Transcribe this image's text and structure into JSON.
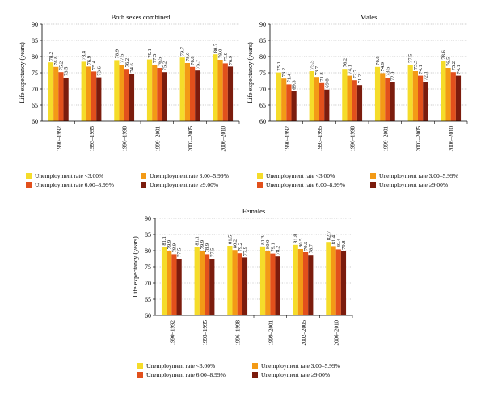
{
  "colors": {
    "lt3": "#f5dc2a",
    "r3_6": "#f39a16",
    "r6_9": "#e2501c",
    "ge9": "#7b1c0d",
    "grid": "#9a9a9a"
  },
  "legend_labels": [
    "Unemployment rate <3.00%",
    "Unemployment rate 3.00–5.99%",
    "Unemployment rate 6.00–8.99%",
    "Unemployment rate ≥9.00%"
  ],
  "chart_data": [
    {
      "type": "bar",
      "title": "Both sexes combined",
      "ylabel": "Life expectancy (years)",
      "ylim": [
        60,
        90
      ],
      "yticks": [
        60,
        65,
        70,
        75,
        80,
        85,
        90
      ],
      "grid": "dotted horizontal",
      "categories": [
        "1990–1992",
        "1993–1995",
        "1996–1998",
        "1999–2001",
        "2002–2005",
        "2006–2010"
      ],
      "series": [
        {
          "name": "Unemployment rate <3.00%",
          "values": [
            78.2,
            78.4,
            78.9,
            79.1,
            79.7,
            80.7
          ]
        },
        {
          "name": "Unemployment rate 3.00–5.99%",
          "values": [
            76.8,
            76.9,
            77.5,
            77.5,
            78.0,
            79.0
          ]
        },
        {
          "name": "Unemployment rate 6.00–8.99%",
          "values": [
            75.2,
            75.4,
            76.2,
            76.5,
            76.8,
            77.9
          ]
        },
        {
          "name": "Unemployment rate ≥9.00%",
          "values": [
            73.5,
            73.6,
            74.6,
            75.2,
            75.7,
            76.9
          ]
        }
      ],
      "data_labels": [
        [
          "78.2",
          "76.8",
          "75.2",
          "73.5"
        ],
        [
          "78.4",
          "76.9",
          "75.4",
          "73.6"
        ],
        [
          "78.9",
          "77.5",
          "76.2",
          "74.6"
        ],
        [
          "79.1",
          "77.5",
          "76.5",
          "75.2"
        ],
        [
          "79.7",
          "78.0",
          "76.8",
          "75.7"
        ],
        [
          "80.7",
          "79.0",
          "77.9",
          "76.9"
        ]
      ]
    },
    {
      "type": "bar",
      "title": "Males",
      "ylabel": "Life expectancy (years)",
      "ylim": [
        60,
        90
      ],
      "yticks": [
        60,
        65,
        70,
        75,
        80,
        85,
        90
      ],
      "grid": "dotted horizontal",
      "categories": [
        "1990–1992",
        "1993–1995",
        "1996–1998",
        "1999–2001",
        "2002–2005",
        "2006–2010"
      ],
      "series": [
        {
          "name": "Unemployment rate <3.00%",
          "values": [
            75.1,
            75.5,
            76.2,
            76.8,
            77.5,
            78.6
          ]
        },
        {
          "name": "Unemployment rate 3.00–5.99%",
          "values": [
            73.2,
            73.7,
            74.1,
            74.9,
            75.5,
            76.5
          ]
        },
        {
          "name": "Unemployment rate 6.00–8.99%",
          "values": [
            71.4,
            71.8,
            72.7,
            73.5,
            74.1,
            75.2
          ]
        },
        {
          "name": "Unemployment rate ≥9.00%",
          "values": [
            69.3,
            69.8,
            71.2,
            72.0,
            72.1,
            74.1
          ]
        }
      ],
      "data_labels": [
        [
          "75.1",
          "73.2",
          "71.4",
          "69.3"
        ],
        [
          "75.5",
          "73.7",
          "71.8",
          "69.8"
        ],
        [
          "76.2",
          "74.1",
          "72.7",
          "71.2"
        ],
        [
          "76.8",
          "74.9",
          "73.5",
          "72.0"
        ],
        [
          "77.5",
          "75.5",
          "74.1",
          "72.1"
        ],
        [
          "78.6",
          "76.5",
          "75.2",
          "74.1"
        ]
      ]
    },
    {
      "type": "bar",
      "title": "Females",
      "ylabel": "Life expectancy (years)",
      "ylim": [
        60,
        90
      ],
      "yticks": [
        60,
        65,
        70,
        75,
        80,
        85,
        90
      ],
      "grid": "dotted horizontal",
      "categories": [
        "1990–1992",
        "1993–1995",
        "1996–1998",
        "1999–2001",
        "2002–2005",
        "2006–2010"
      ],
      "series": [
        {
          "name": "Unemployment rate <3.00%",
          "values": [
            81.1,
            81.1,
            81.5,
            81.3,
            81.8,
            82.7
          ]
        },
        {
          "name": "Unemployment rate 3.00–5.99%",
          "values": [
            79.9,
            79.9,
            80.2,
            80.0,
            80.5,
            81.4
          ]
        },
        {
          "name": "Unemployment rate 6.00–8.99%",
          "values": [
            78.9,
            78.9,
            79.2,
            79.1,
            79.5,
            80.4
          ]
        },
        {
          "name": "Unemployment rate ≥9.00%",
          "values": [
            77.5,
            77.5,
            77.9,
            78.2,
            78.7,
            79.8
          ]
        }
      ],
      "data_labels": [
        [
          "81.1",
          "79.9",
          "78.9",
          "77.5"
        ],
        [
          "81.1",
          "79.9",
          "78.9",
          "77.5"
        ],
        [
          "81.5",
          "80.2",
          "79.2",
          "77.9"
        ],
        [
          "81.3",
          "80.0",
          "79.1",
          "78.2"
        ],
        [
          "81.8",
          "80.5",
          "79.5",
          "78.7"
        ],
        [
          "82.7",
          "81.4",
          "80.4",
          "79.8"
        ]
      ]
    }
  ]
}
